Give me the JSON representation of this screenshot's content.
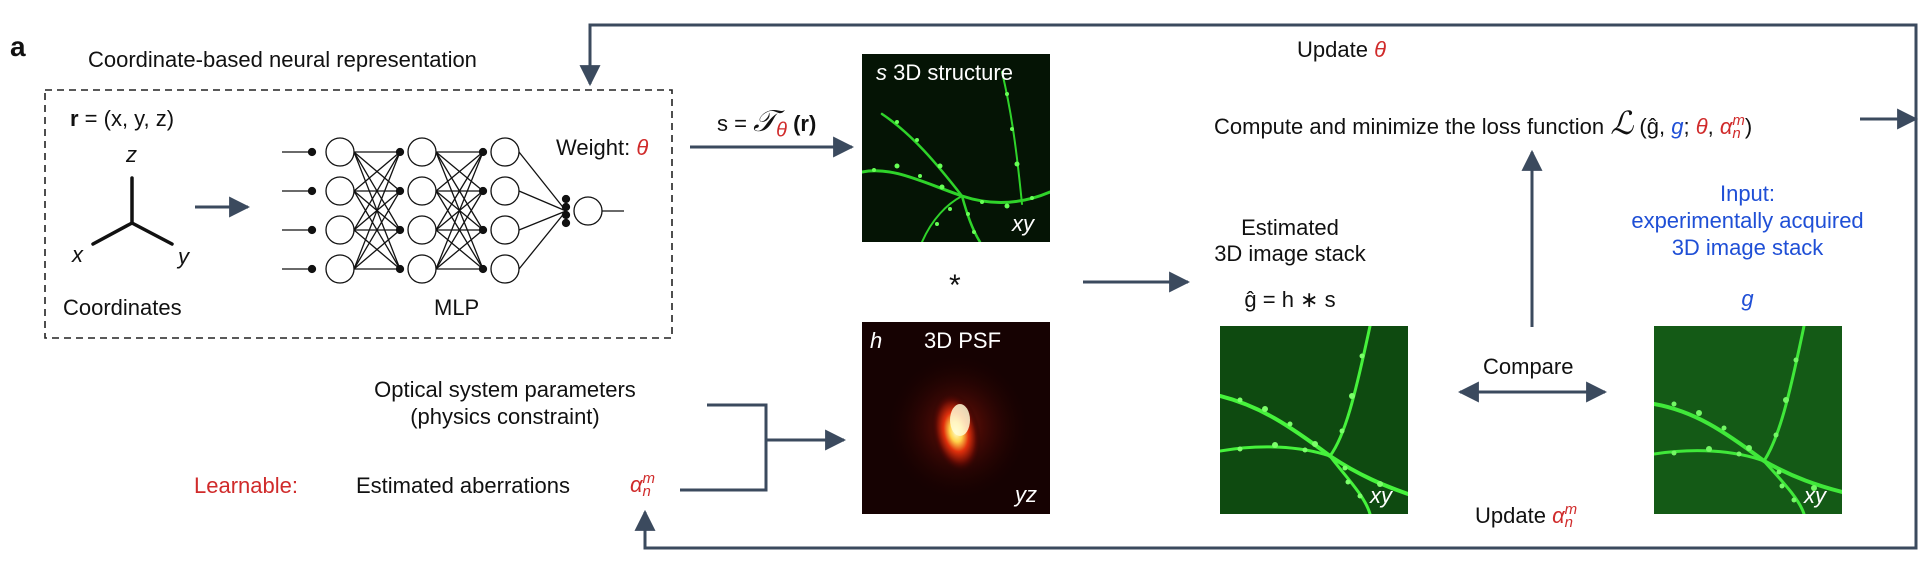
{
  "panel_letter": "a",
  "neural_rep": {
    "title": "Coordinate-based neural representation",
    "r_bold": "r",
    "r_eq": " = (x, y, z)",
    "axis_z": "z",
    "axis_x": "x",
    "axis_y": "y",
    "coordinates_label": "Coordinates",
    "mlp_label": "MLP",
    "weight_label": "Weight:",
    "theta": "θ"
  },
  "forward": {
    "s_eq_lhs": "s =",
    "operator": "𝒯",
    "theta": "θ",
    "r_arg": "(r)"
  },
  "structure_panel": {
    "prefix": "s",
    "title": "3D structure",
    "view": "xy"
  },
  "conv_symbol": "*",
  "psf_panel": {
    "prefix": "h",
    "title": "3D PSF",
    "view": "yz"
  },
  "optical": {
    "line1": "Optical system parameters",
    "line2": "(physics constraint)",
    "learnable": "Learnable:",
    "aberrations": "Estimated aberrations",
    "alpha": "α",
    "alpha_sup": "m",
    "alpha_sub": "n"
  },
  "estimated": {
    "line1": "Estimated",
    "line2": "3D image stack",
    "formula": "ĝ = h ∗ s",
    "view": "xy"
  },
  "loss": {
    "prefix": "Compute and minimize the loss function",
    "symbol": "ℒ",
    "open": " (ĝ,",
    "g": "g",
    "sep1": ";",
    "theta": "θ",
    "sep2": ",",
    "alpha": "α",
    "alpha_sup": "m",
    "alpha_sub": "n",
    "close": ")"
  },
  "update_theta": {
    "text": "Update",
    "symbol": "θ"
  },
  "compare": "Compare",
  "input": {
    "line1": "Input:",
    "line2": "experimentally acquired",
    "line3": "3D image stack",
    "g": "g",
    "view": "xy"
  },
  "update_alpha": {
    "text": "Update",
    "alpha": "α",
    "alpha_sup": "m",
    "alpha_sub": "n"
  },
  "colors": {
    "arrow": "#3b4a5e",
    "red": "#d02b2b",
    "blue": "#1f4fd6",
    "neuron_green": "#39ff3a"
  }
}
